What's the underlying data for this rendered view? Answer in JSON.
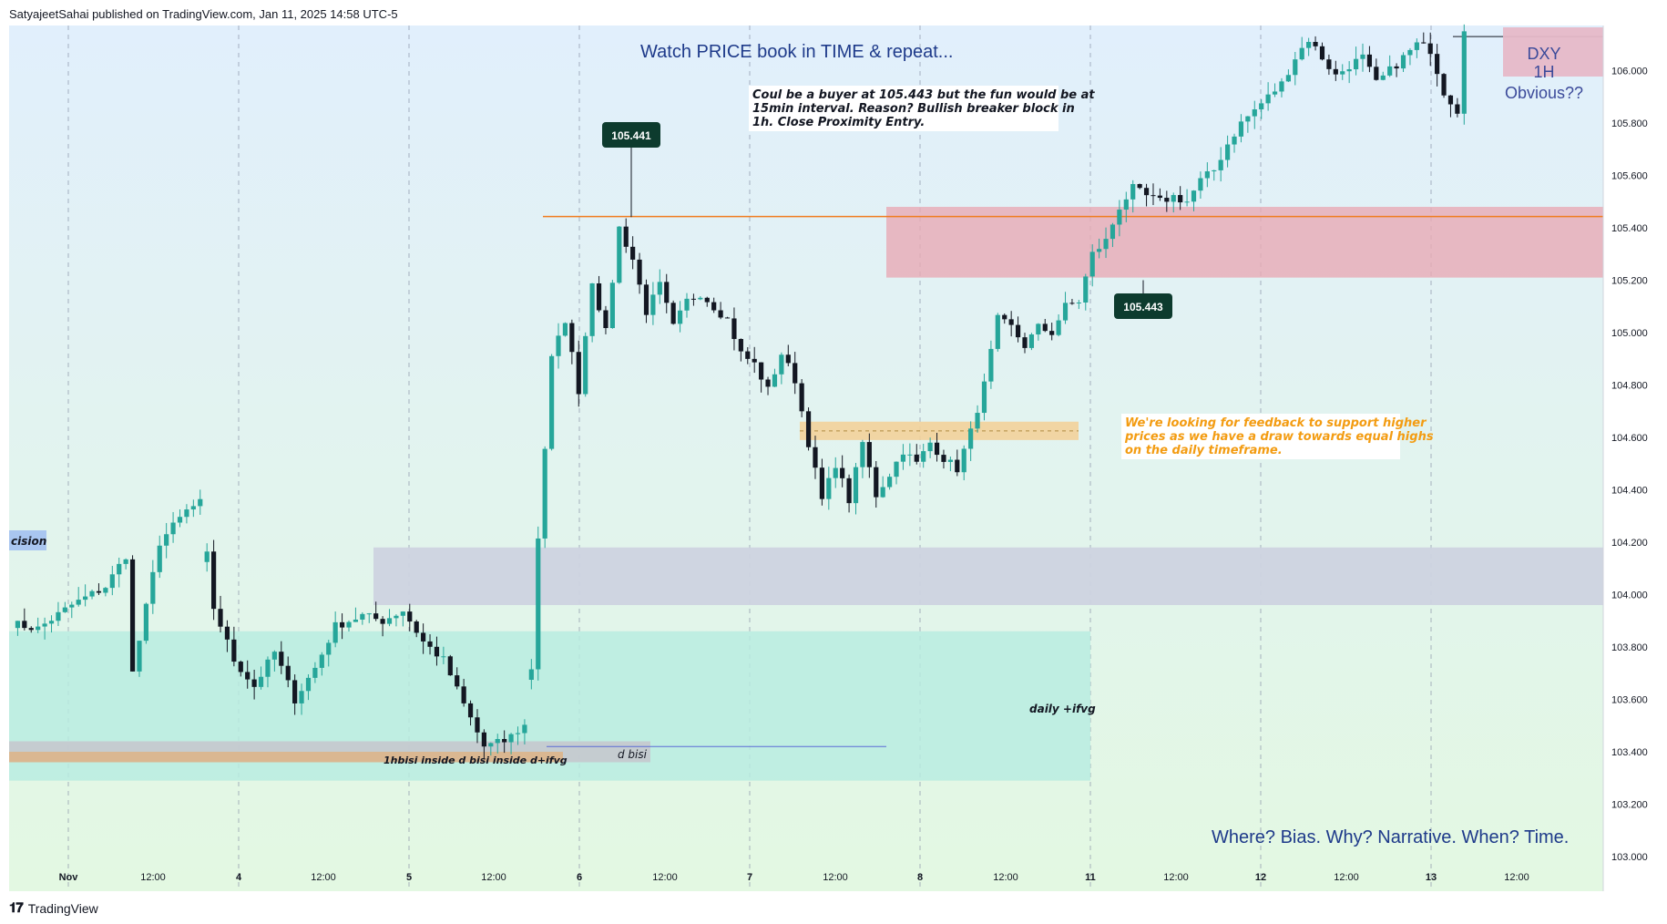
{
  "header": {
    "publisher": "SatyajeetSahai published on TradingView.com, Jan 11, 2025 14:58 UTC-5"
  },
  "footer": {
    "logo_icon": "tradingview-logo-icon",
    "brand": "TradingView"
  },
  "colors": {
    "up": "#26a69a",
    "down": "#131722",
    "supply_zone": "#e8aab5",
    "demand_zone_large": "#b8ece0",
    "gray_zone": "#cdd3e0",
    "orange_zone": "#f3d29a",
    "hline": "#f07d20",
    "title_text": "#1e3a8a",
    "note_orange": "#f39c12"
  },
  "chart_data": {
    "type": "candlestick",
    "symbol_box": {
      "line1": "DXY",
      "line2": "1H",
      "line3": "Obvious??"
    },
    "title": "Watch PRICE book in TIME & repeat...",
    "ylim": [
      102.95,
      106.22
    ],
    "y_ticks": [
      "106.000",
      "105.800",
      "105.600",
      "105.400",
      "105.200",
      "105.000",
      "104.800",
      "104.600",
      "104.400",
      "104.200",
      "104.000",
      "103.800",
      "103.600",
      "103.400",
      "103.200",
      "103.000"
    ],
    "x_ticks": [
      "Nov",
      "12:00",
      "4",
      "12:00",
      "5",
      "12:00",
      "6",
      "12:00",
      "7",
      "12:00",
      "8",
      "12:00",
      "11",
      "12:00",
      "12",
      "12:00",
      "13",
      "12:00"
    ],
    "price_labels": [
      {
        "text": "105.441",
        "value": 105.441
      },
      {
        "text": "105.443",
        "value": 105.443
      }
    ],
    "annotations": {
      "note_buyer": "Coul be a buyer at 105.443 but the fun would be at 15min interval. Reason? Bullish breaker block in 1h. Close Proximity Entry.",
      "note_feedback": "We're looking for feedback to support higher prices as we have a draw towards equal highs on the daily timeframe.",
      "bottom_caption": "Where? Bias. Why? Narrative. When? Time.",
      "label_decision": "cision",
      "label_daily_ifvg": "daily +ifvg",
      "label_d_bisi": "d bisi",
      "label_1hbisi": "1hbisi inside d bisi inside d+ifvg"
    },
    "zones": [
      {
        "name": "supply-zone",
        "top": 105.48,
        "bottom": 105.21
      },
      {
        "name": "gray-zone",
        "top": 104.18,
        "bottom": 103.96
      },
      {
        "name": "daily-ifvg-zone",
        "top": 103.86,
        "bottom": 103.29
      },
      {
        "name": "orange-zone",
        "top": 104.66,
        "bottom": 104.59
      },
      {
        "name": "d-bisi-zone",
        "top": 103.44,
        "bottom": 103.36
      },
      {
        "name": "1hbisi-zone",
        "top": 103.4,
        "bottom": 103.36
      }
    ],
    "hlines": [
      {
        "name": "equal-highs-line",
        "value": 105.443
      }
    ],
    "path_anchors": [
      [
        0,
        103.89
      ],
      [
        4,
        103.87
      ],
      [
        9,
        103.96
      ],
      [
        14,
        104.03
      ],
      [
        17,
        104.15
      ],
      [
        18,
        103.7
      ],
      [
        22,
        104.2
      ],
      [
        26,
        104.32
      ],
      [
        28,
        104.35
      ],
      [
        30,
        103.95
      ],
      [
        33,
        103.75
      ],
      [
        36,
        103.65
      ],
      [
        39,
        103.78
      ],
      [
        42,
        103.6
      ],
      [
        45,
        103.72
      ],
      [
        48,
        103.88
      ],
      [
        52,
        103.92
      ],
      [
        55,
        103.9
      ],
      [
        58,
        103.94
      ],
      [
        61,
        103.82
      ],
      [
        64,
        103.75
      ],
      [
        67,
        103.58
      ],
      [
        70,
        103.42
      ],
      [
        73,
        103.44
      ],
      [
        76,
        103.5
      ],
      [
        77,
        103.72
      ],
      [
        78,
        104.22
      ],
      [
        80,
        104.9
      ],
      [
        82,
        105.05
      ],
      [
        84,
        104.78
      ],
      [
        86,
        105.2
      ],
      [
        88,
        105.0
      ],
      [
        90,
        105.4
      ],
      [
        92,
        105.28
      ],
      [
        94,
        105.08
      ],
      [
        96,
        105.18
      ],
      [
        98,
        105.02
      ],
      [
        100,
        105.12
      ],
      [
        102,
        105.15
      ],
      [
        104,
        105.1
      ],
      [
        106,
        105.05
      ],
      [
        108,
        104.92
      ],
      [
        110,
        104.88
      ],
      [
        112,
        104.78
      ],
      [
        114,
        104.92
      ],
      [
        116,
        104.82
      ],
      [
        118,
        104.58
      ],
      [
        120,
        104.36
      ],
      [
        122,
        104.5
      ],
      [
        124,
        104.36
      ],
      [
        126,
        104.58
      ],
      [
        128,
        104.38
      ],
      [
        130,
        104.46
      ],
      [
        132,
        104.55
      ],
      [
        134,
        104.5
      ],
      [
        136,
        104.58
      ],
      [
        138,
        104.52
      ],
      [
        140,
        104.48
      ],
      [
        142,
        104.62
      ],
      [
        144,
        104.8
      ],
      [
        146,
        105.05
      ],
      [
        148,
        105.02
      ],
      [
        150,
        104.95
      ],
      [
        152,
        105.02
      ],
      [
        154,
        105.0
      ],
      [
        156,
        105.1
      ],
      [
        158,
        105.12
      ],
      [
        160,
        105.3
      ],
      [
        162,
        105.35
      ],
      [
        164,
        105.48
      ],
      [
        166,
        105.55
      ],
      [
        168,
        105.52
      ],
      [
        170,
        105.5
      ],
      [
        172,
        105.52
      ],
      [
        174,
        105.5
      ],
      [
        176,
        105.58
      ],
      [
        178,
        105.62
      ],
      [
        180,
        105.72
      ],
      [
        182,
        105.8
      ],
      [
        184,
        105.85
      ],
      [
        186,
        105.9
      ],
      [
        188,
        105.95
      ],
      [
        190,
        106.05
      ],
      [
        192,
        106.12
      ],
      [
        194,
        106.05
      ],
      [
        196,
        105.98
      ],
      [
        198,
        106.02
      ],
      [
        200,
        106.05
      ],
      [
        202,
        105.95
      ],
      [
        204,
        106.0
      ],
      [
        206,
        106.05
      ],
      [
        208,
        106.1
      ],
      [
        210,
        106.08
      ],
      [
        212,
        105.92
      ],
      [
        214,
        105.85
      ],
      [
        215,
        106.15
      ]
    ]
  }
}
